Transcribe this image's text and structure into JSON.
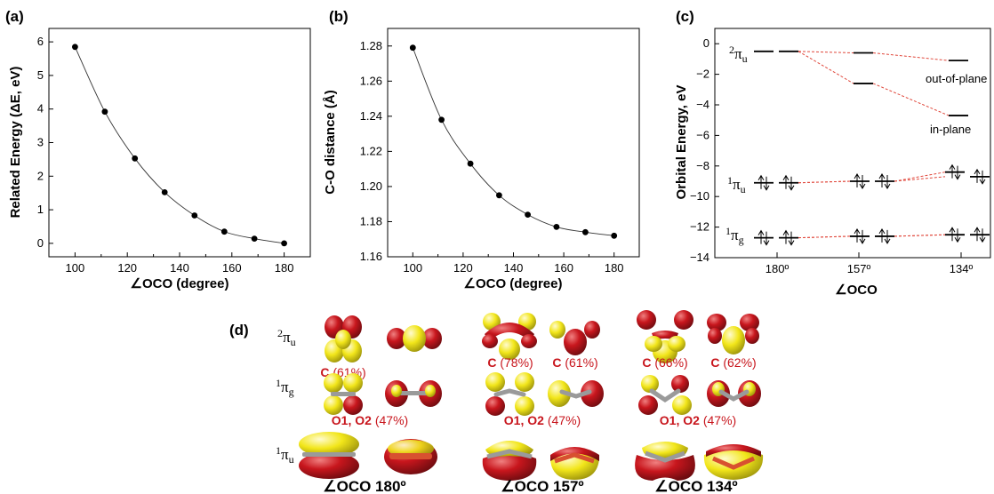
{
  "chart_data": [
    {
      "type": "line",
      "panel": "(a)",
      "xlabel": "∠OCO (degree)",
      "ylabel": "Related Energy (ΔE, eV)",
      "xlim": [
        90,
        190
      ],
      "ylim": [
        -0.4,
        6.4
      ],
      "xticks": [
        "100",
        "120",
        "140",
        "160",
        "180"
      ],
      "yticks": [
        "0",
        "1",
        "2",
        "3",
        "4",
        "5",
        "6"
      ],
      "x": [
        100,
        111.4,
        122.9,
        134.3,
        145.7,
        157.1,
        168.6,
        180
      ],
      "values": [
        5.85,
        3.92,
        2.53,
        1.52,
        0.83,
        0.35,
        0.14,
        0.0
      ]
    },
    {
      "type": "line",
      "panel": "(b)",
      "xlabel": "∠OCO (degree)",
      "ylabel": "C-O distance (Å)",
      "xlim": [
        90,
        190
      ],
      "ylim": [
        1.16,
        1.29
      ],
      "xticks": [
        "100",
        "120",
        "140",
        "160",
        "180"
      ],
      "yticks": [
        "1.16",
        "1.18",
        "1.20",
        "1.22",
        "1.24",
        "1.26",
        "1.28"
      ],
      "x": [
        100,
        111.4,
        122.9,
        134.3,
        145.7,
        157.1,
        168.6,
        180
      ],
      "values": [
        1.279,
        1.238,
        1.213,
        1.195,
        1.184,
        1.177,
        1.174,
        1.172
      ]
    },
    {
      "type": "energy-level diagram",
      "panel": "(c)",
      "xlabel": "∠OCO",
      "ylabel": "Orbital Energy, eV",
      "ylim": [
        -14,
        1
      ],
      "yticks": [
        "0",
        "-2",
        "-4",
        "-6",
        "-8",
        "-10",
        "-12",
        "-14"
      ],
      "categories": [
        "180º",
        "157º",
        "134º"
      ],
      "series": [
        {
          "name": "2πu",
          "values": [
            [
              -0.5,
              -0.5
            ],
            [
              -0.6,
              -2.6
            ],
            [
              -1.1,
              -4.7
            ]
          ]
        },
        {
          "name": "1πu",
          "values": [
            [
              -9.1,
              -9.1
            ],
            [
              -9.0,
              -9.0
            ],
            [
              -8.4,
              -8.7
            ]
          ]
        },
        {
          "name": "1πg",
          "values": [
            [
              -12.7,
              -12.7
            ],
            [
              -12.6,
              -12.6
            ],
            [
              -12.5,
              -12.5
            ]
          ]
        }
      ],
      "annotations": [
        "out-of-plane",
        "in-plane"
      ]
    }
  ],
  "panel_labels": {
    "a": "(a)",
    "b": "(b)",
    "c": "(c)",
    "d": "(d)"
  },
  "panel_d": {
    "rows": [
      {
        "orbital": "2πu",
        "sup": "2",
        "main": "π",
        "sub": "u"
      },
      {
        "orbital": "1πg",
        "sup": "1",
        "main": "π",
        "sub": "g"
      },
      {
        "orbital": "1πu",
        "sup": "1",
        "main": "π",
        "sub": "u"
      }
    ],
    "contributions_2pu": [
      {
        "atom": "C",
        "pct": "(61%)"
      },
      {
        "atom": "C",
        "pct": "(78%)"
      },
      {
        "atom": "C",
        "pct": "(61%)"
      },
      {
        "atom": "C",
        "pct": "(66%)"
      },
      {
        "atom": "C",
        "pct": "(62%)"
      }
    ],
    "contributions_1pg": [
      {
        "atom": "O1, O2",
        "pct": "(47%)"
      },
      {
        "atom": "O1, O2",
        "pct": "(47%)"
      },
      {
        "atom": "O1, O2",
        "pct": "(47%)"
      }
    ],
    "angles": [
      "∠OCO 180º",
      "∠OCO 157º",
      "∠OCO 134º"
    ]
  },
  "colors": {
    "lobe_red": "#c8161d",
    "lobe_yellow": "#f2e61a",
    "dashed_line": "#e0473b"
  }
}
